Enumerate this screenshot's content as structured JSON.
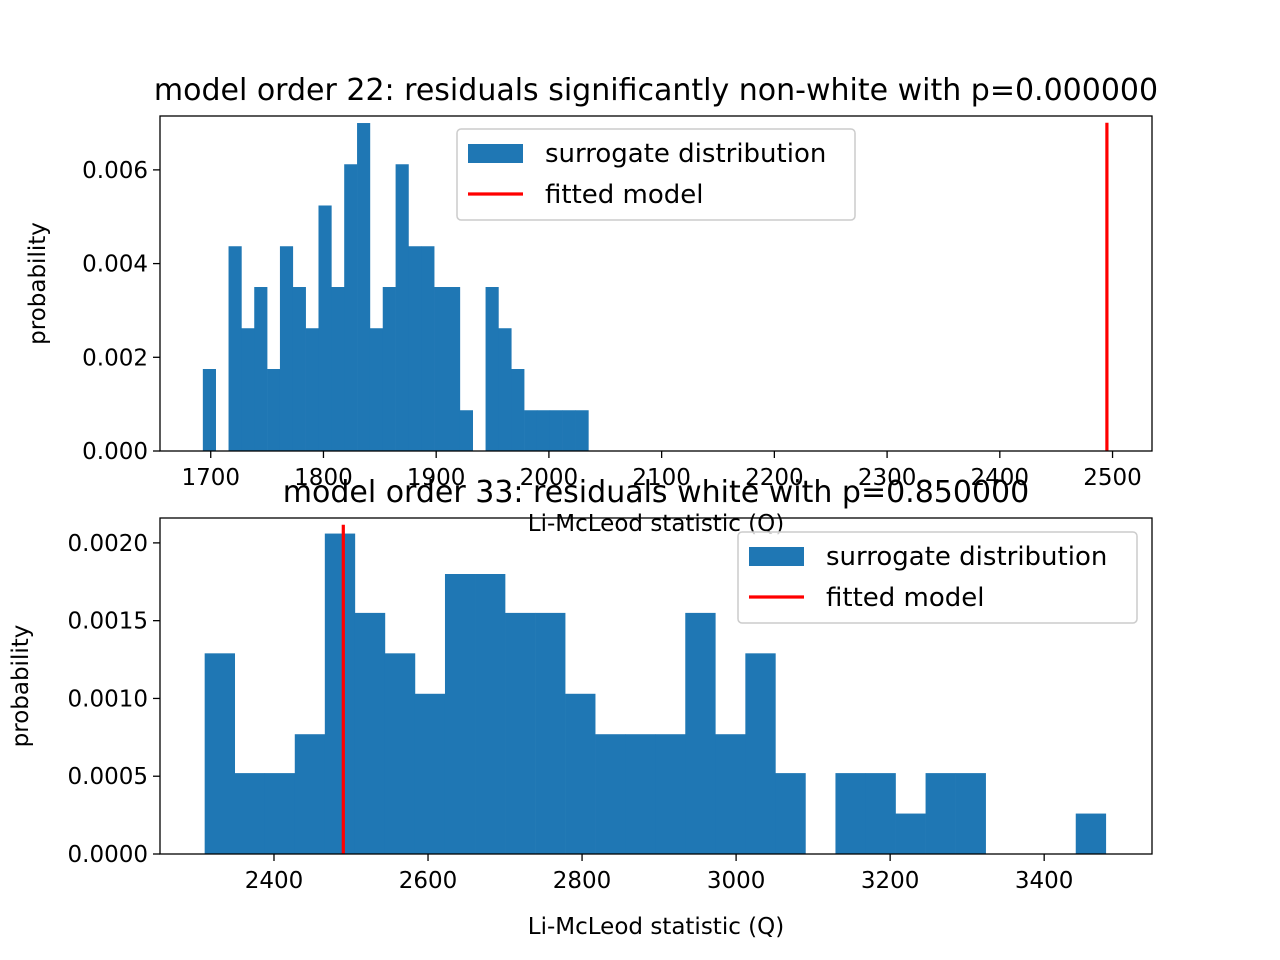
{
  "chart_data": [
    {
      "type": "bar",
      "title": "model order 22: residuals significantly non-white with p=0.000000",
      "xlabel": "Li-McLeod statistic (Q)",
      "ylabel": "probability",
      "xlim": [
        1655,
        2535
      ],
      "ylim": [
        0,
        0.00715
      ],
      "xticks": [
        1700,
        1800,
        1900,
        2000,
        2100,
        2200,
        2300,
        2400,
        2500
      ],
      "yticks": [
        0.0,
        0.002,
        0.004,
        0.006
      ],
      "ytick_format": "0.000",
      "bin_width": 11.4,
      "bin_start": 1693,
      "series": [
        {
          "name": "surrogate distribution",
          "kind": "histogram",
          "color": "#1f77b4",
          "values": [
            0.00175,
            0,
            0.00437,
            0.00262,
            0.0035,
            0.00175,
            0.00437,
            0.0035,
            0.00262,
            0.00524,
            0.0035,
            0.00612,
            0.007,
            0.00262,
            0.0035,
            0.00612,
            0.00437,
            0.00437,
            0.0035,
            0.0035,
            0.00087,
            0,
            0.0035,
            0.00262,
            0.00175,
            0.00087,
            0.00087,
            0.00087,
            0.00087,
            0.00087
          ]
        },
        {
          "name": "fitted model",
          "kind": "vline",
          "color": "#ff0000",
          "x": 2495
        }
      ],
      "legend": "top-center",
      "grid": false
    },
    {
      "type": "bar",
      "title": "model order 33: residuals white with p=0.850000",
      "xlabel": "Li-McLeod statistic (Q)",
      "ylabel": "probability",
      "xlim": [
        2252,
        3540
      ],
      "ylim": [
        0,
        0.00216
      ],
      "xticks": [
        2400,
        2600,
        2800,
        3000,
        3200,
        3400
      ],
      "yticks": [
        0.0,
        0.0005,
        0.001,
        0.0015,
        0.002
      ],
      "ytick_format": "0.0000",
      "bin_width": 39,
      "bin_start": 2310,
      "series": [
        {
          "name": "surrogate distribution",
          "kind": "histogram",
          "color": "#1f77b4",
          "values": [
            0.00129,
            0.00052,
            0.00052,
            0.00077,
            0.00206,
            0.00155,
            0.00129,
            0.00103,
            0.0018,
            0.0018,
            0.00155,
            0.00155,
            0.00103,
            0.00077,
            0.00077,
            0.00077,
            0.00155,
            0.00077,
            0.00129,
            0.00052,
            0,
            0.00052,
            0.00052,
            0.00026,
            0.00052,
            0.00052,
            0,
            0,
            0,
            0.00026
          ]
        },
        {
          "name": "fitted model",
          "kind": "vline",
          "color": "#ff0000",
          "x": 2490
        }
      ],
      "legend": "top-right",
      "grid": false
    }
  ]
}
